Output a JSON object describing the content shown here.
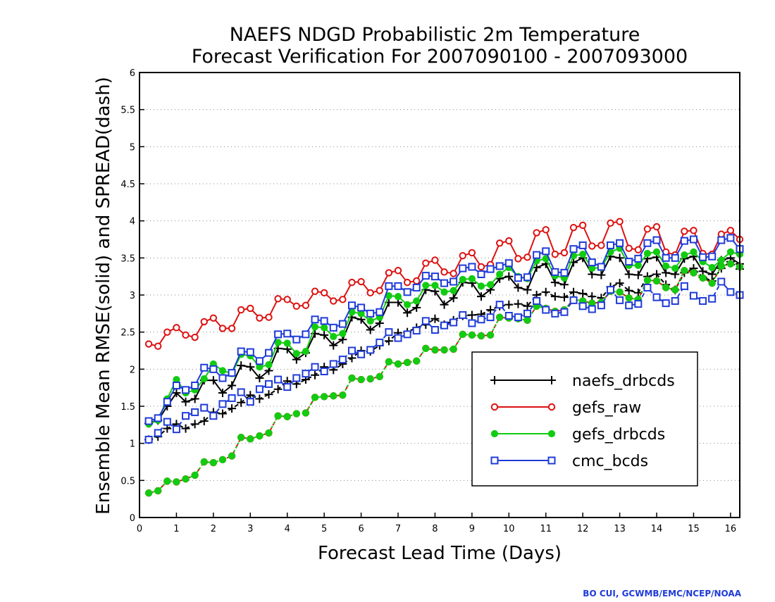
{
  "chart_data": {
    "type": "line",
    "title": [
      "NAEFS NDGD Probabilistic 2m Temperature",
      "Forecast Verification For 2007090100 - 2007093000"
    ],
    "xlabel": "Forecast Lead Time (Days)",
    "ylabel": "Ensemble Mean RMSE(solid) and SPREAD(dash)",
    "credit": "BO CUI, GCWMB/EMC/NCEP/NOAA",
    "xlim": [
      0,
      16.25
    ],
    "ylim": [
      0,
      6
    ],
    "xticks": [
      0,
      1,
      2,
      3,
      4,
      5,
      6,
      7,
      8,
      9,
      10,
      11,
      12,
      13,
      14,
      15,
      16
    ],
    "yticks": [
      0,
      0.5,
      1,
      1.5,
      2,
      2.5,
      3,
      3.5,
      4,
      4.5,
      5,
      5.5,
      6
    ],
    "ytick_labels": [
      "0",
      "0.5",
      "1",
      "1.5",
      "2",
      "2.5",
      "3",
      "3.5",
      "4",
      "4.5",
      "5",
      "5.5",
      "6"
    ],
    "grid": true,
    "legend_position": "lower-right",
    "x": [
      0.25,
      0.5,
      0.75,
      1.0,
      1.25,
      1.5,
      1.75,
      2.0,
      2.25,
      2.5,
      2.75,
      3.0,
      3.25,
      3.5,
      3.75,
      4.0,
      4.25,
      4.5,
      4.75,
      5.0,
      5.25,
      5.5,
      5.75,
      6.0,
      6.25,
      6.5,
      6.75,
      7.0,
      7.25,
      7.5,
      7.75,
      8.0,
      8.25,
      8.5,
      8.75,
      9.0,
      9.25,
      9.5,
      9.75,
      10.0,
      10.25,
      10.5,
      10.75,
      11.0,
      11.25,
      11.5,
      11.75,
      12.0,
      12.25,
      12.5,
      12.75,
      13.0,
      13.25,
      13.5,
      13.75,
      14.0,
      14.25,
      14.5,
      14.75,
      15.0,
      15.25,
      15.5,
      15.75,
      16.0,
      16.25
    ],
    "series": [
      {
        "name": "naefs_drbcds",
        "color": "#000000",
        "marker": "plus",
        "rmse": [
          1.27,
          1.31,
          1.5,
          1.68,
          1.56,
          1.6,
          1.85,
          1.85,
          1.68,
          1.78,
          2.05,
          2.03,
          1.88,
          1.98,
          2.28,
          2.27,
          2.13,
          2.22,
          2.48,
          2.46,
          2.32,
          2.4,
          2.7,
          2.67,
          2.53,
          2.62,
          2.9,
          2.9,
          2.76,
          2.83,
          3.07,
          3.05,
          2.87,
          2.96,
          3.17,
          3.16,
          2.98,
          3.07,
          3.22,
          3.25,
          3.1,
          3.07,
          3.37,
          3.42,
          3.17,
          3.14,
          3.44,
          3.5,
          3.28,
          3.27,
          3.52,
          3.5,
          3.28,
          3.27,
          3.49,
          3.51,
          3.3,
          3.28,
          3.49,
          3.52,
          3.32,
          3.28,
          3.47,
          3.5,
          3.42
        ],
        "spread": [
          1.05,
          1.09,
          1.2,
          1.26,
          1.2,
          1.26,
          1.3,
          1.42,
          1.4,
          1.47,
          1.55,
          1.65,
          1.6,
          1.66,
          1.73,
          1.84,
          1.8,
          1.86,
          1.92,
          2.03,
          1.99,
          2.07,
          2.15,
          2.25,
          2.24,
          2.32,
          2.38,
          2.49,
          2.5,
          2.56,
          2.6,
          2.68,
          2.6,
          2.66,
          2.72,
          2.73,
          2.74,
          2.8,
          2.85,
          2.87,
          2.88,
          2.85,
          3.0,
          3.04,
          2.98,
          2.97,
          3.04,
          3.02,
          2.98,
          2.96,
          3.11,
          3.16,
          3.06,
          3.03,
          3.25,
          3.28,
          3.14,
          3.07,
          3.3,
          3.36,
          3.24,
          3.19,
          3.36,
          3.45,
          3.35
        ]
      },
      {
        "name": "gefs_raw",
        "color": "#dd1111",
        "marker": "circle",
        "rmse": [
          2.34,
          2.31,
          2.5,
          2.56,
          2.46,
          2.43,
          2.64,
          2.69,
          2.55,
          2.55,
          2.8,
          2.82,
          2.69,
          2.7,
          2.95,
          2.94,
          2.85,
          2.86,
          3.05,
          3.03,
          2.92,
          2.94,
          3.17,
          3.18,
          3.03,
          3.06,
          3.3,
          3.33,
          3.17,
          3.19,
          3.43,
          3.47,
          3.31,
          3.29,
          3.53,
          3.57,
          3.38,
          3.41,
          3.7,
          3.73,
          3.49,
          3.51,
          3.84,
          3.88,
          3.55,
          3.57,
          3.91,
          3.94,
          3.66,
          3.67,
          3.97,
          3.99,
          3.63,
          3.61,
          3.89,
          3.92,
          3.58,
          3.54,
          3.86,
          3.87,
          3.56,
          3.55,
          3.82,
          3.87,
          3.75
        ],
        "spread": [
          0.33,
          0.36,
          0.49,
          0.48,
          0.52,
          0.57,
          0.75,
          0.74,
          0.78,
          0.83,
          1.08,
          1.06,
          1.1,
          1.14,
          1.37,
          1.36,
          1.4,
          1.41,
          1.62,
          1.63,
          1.64,
          1.65,
          1.88,
          1.86,
          1.87,
          1.9,
          2.1,
          2.07,
          2.09,
          2.11,
          2.28,
          2.26,
          2.26,
          2.27,
          2.47,
          2.46,
          2.45,
          2.46,
          2.7,
          2.69,
          2.68,
          2.66,
          2.85,
          2.82,
          2.78,
          2.8,
          2.94,
          2.92,
          2.89,
          2.9,
          3.05,
          3.04,
          2.96,
          2.94,
          3.2,
          3.19,
          3.1,
          3.07,
          3.33,
          3.3,
          3.23,
          3.16,
          3.39,
          3.42,
          3.38
        ]
      },
      {
        "name": "gefs_drbcds",
        "color": "#11cc11",
        "marker": "filled-circle",
        "rmse": [
          1.26,
          1.31,
          1.6,
          1.86,
          1.68,
          1.72,
          1.87,
          2.07,
          1.98,
          1.94,
          2.2,
          2.18,
          2.03,
          2.06,
          2.36,
          2.35,
          2.21,
          2.24,
          2.57,
          2.56,
          2.44,
          2.48,
          2.77,
          2.75,
          2.65,
          2.7,
          2.99,
          2.98,
          2.87,
          2.92,
          3.13,
          3.13,
          3.04,
          3.06,
          3.21,
          3.22,
          3.12,
          3.14,
          3.28,
          3.37,
          3.25,
          3.22,
          3.46,
          3.49,
          3.26,
          3.23,
          3.53,
          3.55,
          3.36,
          3.37,
          3.58,
          3.63,
          3.4,
          3.4,
          3.56,
          3.58,
          3.39,
          3.36,
          3.54,
          3.58,
          3.45,
          3.37,
          3.47,
          3.58,
          3.55
        ],
        "spread": [
          0.33,
          0.36,
          0.49,
          0.48,
          0.52,
          0.57,
          0.75,
          0.74,
          0.78,
          0.83,
          1.08,
          1.06,
          1.1,
          1.14,
          1.37,
          1.36,
          1.4,
          1.41,
          1.62,
          1.63,
          1.64,
          1.65,
          1.88,
          1.86,
          1.87,
          1.9,
          2.1,
          2.07,
          2.09,
          2.11,
          2.28,
          2.26,
          2.26,
          2.27,
          2.47,
          2.46,
          2.45,
          2.46,
          2.7,
          2.69,
          2.68,
          2.66,
          2.85,
          2.82,
          2.78,
          2.8,
          2.94,
          2.92,
          2.89,
          2.9,
          3.05,
          3.04,
          2.96,
          2.94,
          3.2,
          3.19,
          3.1,
          3.07,
          3.33,
          3.3,
          3.23,
          3.16,
          3.39,
          3.42,
          3.38
        ]
      },
      {
        "name": "cmc_bcds",
        "color": "#1f3bd8",
        "marker": "square",
        "rmse": [
          1.3,
          1.34,
          1.56,
          1.78,
          1.72,
          1.78,
          2.02,
          2.0,
          1.88,
          1.95,
          2.24,
          2.23,
          2.11,
          2.22,
          2.47,
          2.48,
          2.4,
          2.47,
          2.67,
          2.65,
          2.56,
          2.61,
          2.86,
          2.83,
          2.75,
          2.77,
          3.12,
          3.12,
          3.04,
          3.1,
          3.26,
          3.25,
          3.16,
          3.18,
          3.36,
          3.38,
          3.28,
          3.35,
          3.39,
          3.43,
          3.23,
          3.24,
          3.54,
          3.59,
          3.31,
          3.3,
          3.62,
          3.67,
          3.44,
          3.38,
          3.67,
          3.7,
          3.45,
          3.49,
          3.7,
          3.74,
          3.5,
          3.5,
          3.73,
          3.75,
          3.51,
          3.52,
          3.74,
          3.77,
          3.62
        ],
        "spread": [
          1.05,
          1.14,
          1.29,
          1.19,
          1.37,
          1.42,
          1.48,
          1.37,
          1.53,
          1.61,
          1.69,
          1.56,
          1.73,
          1.8,
          1.86,
          1.76,
          1.88,
          1.94,
          2.03,
          1.97,
          2.07,
          2.13,
          2.25,
          2.2,
          2.26,
          2.36,
          2.5,
          2.42,
          2.47,
          2.52,
          2.65,
          2.53,
          2.59,
          2.63,
          2.73,
          2.62,
          2.67,
          2.7,
          2.87,
          2.72,
          2.7,
          2.75,
          2.92,
          2.8,
          2.75,
          2.77,
          2.93,
          2.85,
          2.81,
          2.86,
          3.07,
          2.93,
          2.86,
          2.88,
          3.1,
          2.97,
          2.89,
          2.92,
          3.12,
          2.99,
          2.92,
          2.95,
          3.18,
          3.04,
          3.0
        ]
      }
    ]
  }
}
